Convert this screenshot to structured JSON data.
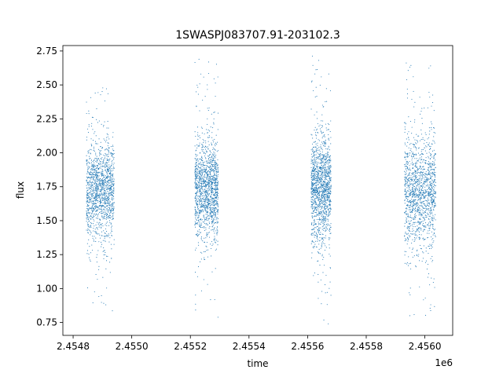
{
  "chart_data": {
    "type": "scatter",
    "title": "1SWASPJ083707.91-203102.3",
    "xlabel": "time",
    "ylabel": "flux",
    "x_offset_label": "1e6",
    "xlim": [
      2454765,
      2456095
    ],
    "ylim": [
      0.655,
      2.79
    ],
    "x_tick_labels": [
      "2.4548",
      "2.4550",
      "2.4552",
      "2.4554",
      "2.4556",
      "2.4558",
      "2.4560"
    ],
    "x_tick_values": [
      2454800,
      2455000,
      2455200,
      2455400,
      2455600,
      2455800,
      2456000
    ],
    "y_tick_labels": [
      "0.75",
      "1.00",
      "1.25",
      "1.50",
      "1.75",
      "2.00",
      "2.25",
      "2.50",
      "2.75"
    ],
    "y_tick_values": [
      0.75,
      1.0,
      1.25,
      1.5,
      1.75,
      2.0,
      2.25,
      2.5,
      2.75
    ],
    "marker_color": "#1f77b4",
    "observing_seasons": [
      {
        "start": 2454845,
        "end": 2454940,
        "center": 1.72,
        "spread": 0.16,
        "min": 0.73,
        "max": 2.55
      },
      {
        "start": 2455215,
        "end": 2455295,
        "center": 1.73,
        "spread": 0.16,
        "min": 0.76,
        "max": 2.73
      },
      {
        "start": 2455612,
        "end": 2455680,
        "center": 1.74,
        "spread": 0.17,
        "min": 0.74,
        "max": 2.75
      },
      {
        "start": 2455930,
        "end": 2456037,
        "center": 1.72,
        "spread": 0.18,
        "min": 0.8,
        "max": 2.68
      }
    ]
  }
}
